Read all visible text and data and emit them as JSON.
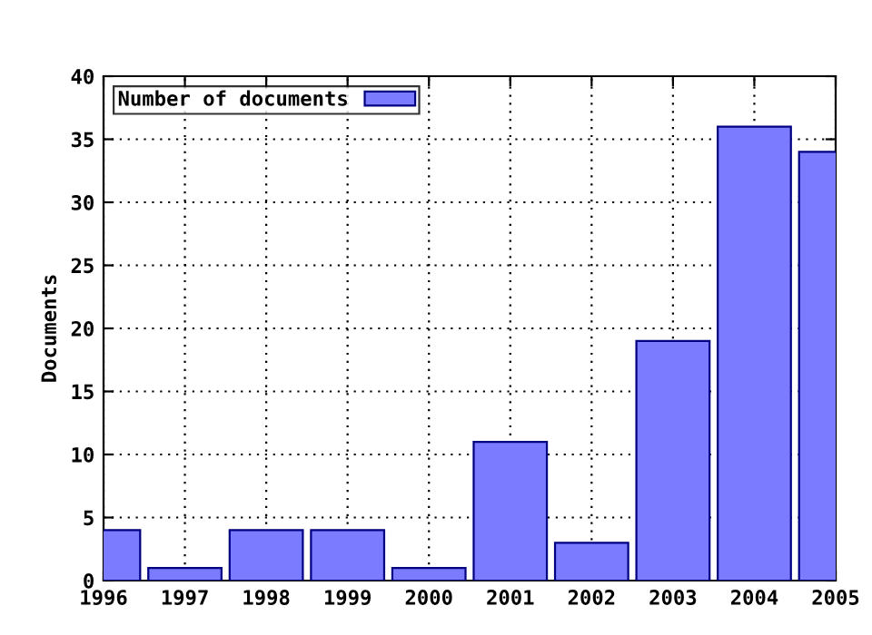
{
  "chart_data": {
    "type": "bar",
    "ylabel": "Documents",
    "x": [
      1996,
      1997,
      1998,
      1999,
      2000,
      2001,
      2002,
      2003,
      2004,
      2005
    ],
    "series": [
      {
        "name": "Number of documents",
        "color": "#7b7bff",
        "values": [
          4,
          1,
          4,
          4,
          1,
          11,
          3,
          19,
          36,
          34
        ]
      }
    ],
    "xlim": [
      1996,
      2005
    ],
    "xticks": [
      1996,
      1997,
      1998,
      1999,
      2000,
      2001,
      2002,
      2003,
      2004,
      2005
    ],
    "ylim": [
      0,
      40
    ],
    "yticks": [
      0,
      5,
      10,
      15,
      20,
      25,
      30,
      35,
      40
    ],
    "grid": true,
    "legend": "top left"
  }
}
